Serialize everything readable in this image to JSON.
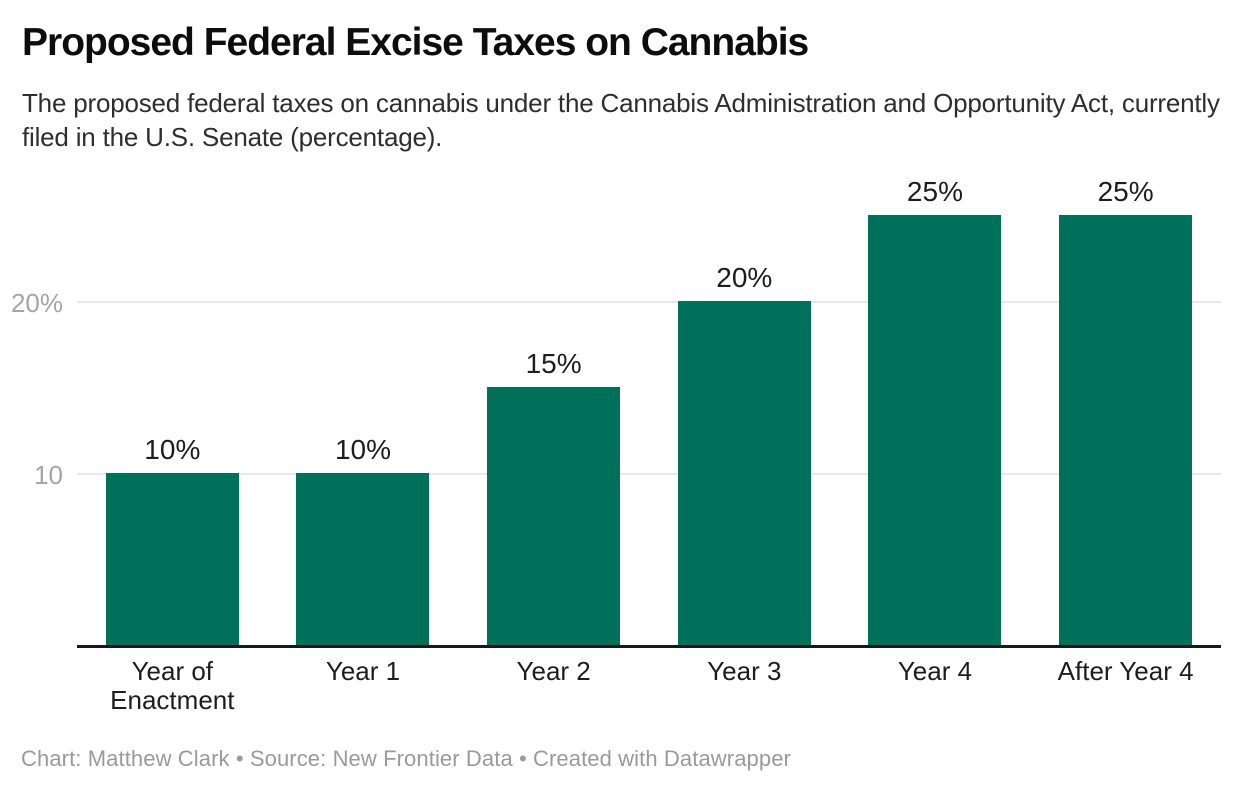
{
  "header": {
    "title": "Proposed Federal Excise Taxes on Cannabis",
    "subtitle": "The proposed federal taxes on cannabis under the Cannabis Administration and Opportunity Act, currently filed in the U.S. Senate (percentage)."
  },
  "footer": {
    "credit": "Chart: Matthew Clark • Source: New Frontier Data • Created with Datawrapper"
  },
  "colors": {
    "bar": "#00705a",
    "gridline": "#e8e8e8",
    "axis_line": "#19191c",
    "tick_label": "#a5a5a5",
    "value_label": "#1d1d1d",
    "category_label": "#1d1d1d",
    "title": "#0d0d0d",
    "subtitle": "#2e2e2e",
    "footer": "#9a9a9a"
  },
  "chart_data": {
    "type": "bar",
    "title": "Proposed Federal Excise Taxes on Cannabis",
    "subtitle": "The proposed federal taxes on cannabis under the Cannabis Administration and Opportunity Act, currently filed in the U.S. Senate (percentage).",
    "categories": [
      "Year of Enactment",
      "Year 1",
      "Year 2",
      "Year 3",
      "Year 4",
      "After Year 4"
    ],
    "values": [
      10,
      10,
      15,
      20,
      25,
      25
    ],
    "value_labels": [
      "10%",
      "10%",
      "15%",
      "20%",
      "25%",
      "25%"
    ],
    "xlabel": "",
    "ylabel": "",
    "unit": "percent",
    "ylim": [
      0,
      28.2
    ],
    "y_ticks": [
      {
        "value": 10,
        "label": "10"
      },
      {
        "value": 20,
        "label": "20%"
      }
    ],
    "grid": true,
    "legend": "none",
    "bar_color": "#00705a",
    "source": "New Frontier Data",
    "chart_credit": "Matthew Clark",
    "tool": "Datawrapper"
  }
}
